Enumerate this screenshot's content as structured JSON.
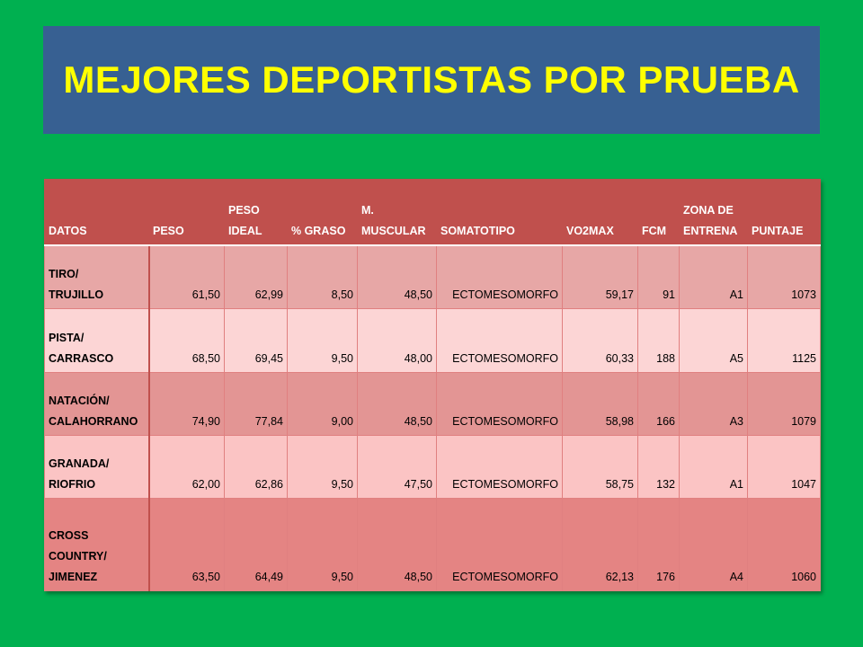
{
  "title": "MEJORES DEPORTISTAS POR PRUEBA",
  "table": {
    "headers": [
      [
        "DATOS"
      ],
      [
        "PESO"
      ],
      [
        "PESO",
        "IDEAL"
      ],
      [
        "% GRASO"
      ],
      [
        "M.",
        "MUSCULAR"
      ],
      [
        "SOMATOTIPO"
      ],
      [
        "VO2MAX"
      ],
      [
        "FCM"
      ],
      [
        "ZONA DE",
        "ENTRENA"
      ],
      [
        "PUNTAJE"
      ]
    ],
    "rows": [
      {
        "label": [
          "TIRO/",
          "TRUJILLO"
        ],
        "cells": [
          "61,50",
          "62,99",
          "8,50",
          "48,50",
          "ECTOMESOMORFO",
          "59,17",
          "91",
          "A1",
          "1073"
        ]
      },
      {
        "label": [
          "PISTA/",
          "CARRASCO"
        ],
        "cells": [
          "68,50",
          "69,45",
          "9,50",
          "48,00",
          "ECTOMESOMORFO",
          "60,33",
          "188",
          "A5",
          "1125"
        ]
      },
      {
        "label": [
          "NATACIÓN/",
          "CALAHORRANO"
        ],
        "cells": [
          "74,90",
          "77,84",
          "9,00",
          "48,50",
          "ECTOMESOMORFO",
          "58,98",
          "166",
          "A3",
          "1079"
        ]
      },
      {
        "label": [
          "GRANADA/",
          "RIOFRIO"
        ],
        "cells": [
          "62,00",
          "62,86",
          "9,50",
          "47,50",
          "ECTOMESOMORFO",
          "58,75",
          "132",
          "A1",
          "1047"
        ]
      },
      {
        "label": [
          "CROSS",
          "COUNTRY/",
          "JIMENEZ"
        ],
        "cells": [
          "63,50",
          "64,49",
          "9,50",
          "48,50",
          "ECTOMESOMORFO",
          "62,13",
          "176",
          "A4",
          "1060"
        ]
      }
    ]
  },
  "colors": {
    "background": "#00b050",
    "title_box": "#376092",
    "title_text": "#ffff00",
    "header": "#c0504d"
  }
}
